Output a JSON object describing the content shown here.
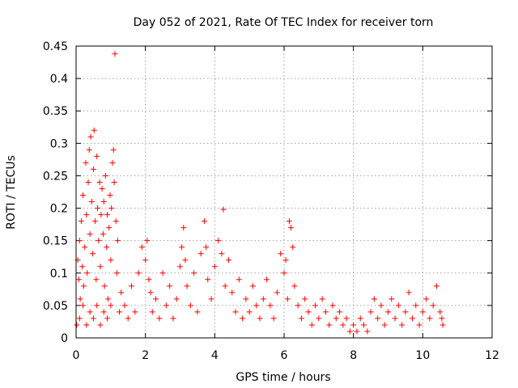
{
  "chart_data": {
    "type": "scatter",
    "title": "Day 052 of 2021, Rate Of TEC Index for receiver torn",
    "xlabel": "GPS time / hours",
    "ylabel": "ROTI / TECUs",
    "xlim": [
      0,
      12
    ],
    "ylim": [
      0,
      0.45
    ],
    "x_ticks": [
      0,
      2,
      4,
      6,
      8,
      10,
      12
    ],
    "y_ticks": [
      0,
      0.05,
      0.1,
      0.15,
      0.2,
      0.25,
      0.3,
      0.35,
      0.4,
      0.45
    ],
    "x_tick_labels": [
      "0",
      "2",
      "4",
      "6",
      "8",
      "10",
      "12"
    ],
    "y_tick_labels": [
      "0",
      "0.05",
      "0.1",
      "0.15",
      "0.2",
      "0.25",
      "0.3",
      "0.35",
      "0.4",
      "0.45"
    ],
    "grid": true,
    "marker": "plus",
    "color": "#ff0000",
    "series": [
      {
        "points": [
          [
            0.02,
            0.02
          ],
          [
            0.05,
            0.12
          ],
          [
            0.08,
            0.09
          ],
          [
            0.1,
            0.15
          ],
          [
            0.12,
            0.06
          ],
          [
            0.15,
            0.18
          ],
          [
            0.18,
            0.11
          ],
          [
            0.2,
            0.22
          ],
          [
            0.22,
            0.08
          ],
          [
            0.25,
            0.14
          ],
          [
            0.28,
            0.27
          ],
          [
            0.3,
            0.19
          ],
          [
            0.32,
            0.1
          ],
          [
            0.35,
            0.24
          ],
          [
            0.38,
            0.29
          ],
          [
            0.4,
            0.16
          ],
          [
            0.42,
            0.31
          ],
          [
            0.45,
            0.21
          ],
          [
            0.48,
            0.13
          ],
          [
            0.5,
            0.26
          ],
          [
            0.52,
            0.32
          ],
          [
            0.55,
            0.18
          ],
          [
            0.58,
            0.09
          ],
          [
            0.6,
            0.28
          ],
          [
            0.62,
            0.2
          ],
          [
            0.65,
            0.15
          ],
          [
            0.68,
            0.24
          ],
          [
            0.7,
            0.11
          ],
          [
            0.72,
            0.19
          ],
          [
            0.75,
            0.23
          ],
          [
            0.78,
            0.16
          ],
          [
            0.8,
            0.21
          ],
          [
            0.82,
            0.08
          ],
          [
            0.85,
            0.25
          ],
          [
            0.88,
            0.14
          ],
          [
            0.9,
            0.19
          ],
          [
            0.92,
            0.06
          ],
          [
            0.95,
            0.17
          ],
          [
            0.98,
            0.22
          ],
          [
            1.0,
            0.12
          ],
          [
            1.02,
            0.2
          ],
          [
            1.05,
            0.27
          ],
          [
            1.08,
            0.29
          ],
          [
            1.1,
            0.24
          ],
          [
            1.12,
            0.438
          ],
          [
            1.15,
            0.18
          ],
          [
            1.18,
            0.1
          ],
          [
            1.2,
            0.15
          ],
          [
            1.25,
            0.04
          ],
          [
            1.3,
            0.07
          ],
          [
            0.1,
            0.03
          ],
          [
            0.2,
            0.05
          ],
          [
            0.3,
            0.02
          ],
          [
            0.4,
            0.04
          ],
          [
            0.5,
            0.03
          ],
          [
            0.6,
            0.05
          ],
          [
            0.7,
            0.02
          ],
          [
            0.8,
            0.04
          ],
          [
            0.9,
            0.03
          ],
          [
            1.0,
            0.05
          ],
          [
            1.4,
            0.05
          ],
          [
            1.5,
            0.03
          ],
          [
            1.6,
            0.08
          ],
          [
            1.7,
            0.04
          ],
          [
            1.8,
            0.1
          ],
          [
            1.9,
            0.14
          ],
          [
            2.0,
            0.12
          ],
          [
            2.05,
            0.15
          ],
          [
            2.1,
            0.09
          ],
          [
            2.15,
            0.07
          ],
          [
            2.2,
            0.04
          ],
          [
            2.3,
            0.06
          ],
          [
            2.4,
            0.03
          ],
          [
            2.5,
            0.1
          ],
          [
            2.6,
            0.05
          ],
          [
            2.7,
            0.08
          ],
          [
            2.8,
            0.03
          ],
          [
            2.9,
            0.06
          ],
          [
            3.0,
            0.11
          ],
          [
            3.05,
            0.14
          ],
          [
            3.1,
            0.17
          ],
          [
            3.15,
            0.12
          ],
          [
            3.2,
            0.08
          ],
          [
            3.3,
            0.05
          ],
          [
            3.4,
            0.1
          ],
          [
            3.5,
            0.04
          ],
          [
            3.6,
            0.13
          ],
          [
            3.7,
            0.18
          ],
          [
            3.75,
            0.14
          ],
          [
            3.8,
            0.09
          ],
          [
            3.9,
            0.06
          ],
          [
            4.0,
            0.11
          ],
          [
            4.1,
            0.15
          ],
          [
            4.2,
            0.13
          ],
          [
            4.25,
            0.198
          ],
          [
            4.3,
            0.08
          ],
          [
            4.4,
            0.12
          ],
          [
            4.5,
            0.07
          ],
          [
            4.6,
            0.04
          ],
          [
            4.7,
            0.09
          ],
          [
            4.8,
            0.03
          ],
          [
            4.9,
            0.06
          ],
          [
            5.0,
            0.04
          ],
          [
            5.1,
            0.08
          ],
          [
            5.2,
            0.05
          ],
          [
            5.3,
            0.03
          ],
          [
            5.4,
            0.06
          ],
          [
            5.5,
            0.09
          ],
          [
            5.6,
            0.05
          ],
          [
            5.7,
            0.03
          ],
          [
            5.8,
            0.07
          ],
          [
            5.9,
            0.13
          ],
          [
            6.0,
            0.1
          ],
          [
            6.05,
            0.12
          ],
          [
            6.1,
            0.06
          ],
          [
            6.15,
            0.18
          ],
          [
            6.2,
            0.17
          ],
          [
            6.25,
            0.14
          ],
          [
            6.3,
            0.08
          ],
          [
            6.4,
            0.05
          ],
          [
            6.5,
            0.03
          ],
          [
            6.6,
            0.06
          ],
          [
            6.7,
            0.04
          ],
          [
            6.8,
            0.02
          ],
          [
            6.9,
            0.05
          ],
          [
            7.0,
            0.03
          ],
          [
            7.1,
            0.06
          ],
          [
            7.2,
            0.04
          ],
          [
            7.3,
            0.02
          ],
          [
            7.4,
            0.05
          ],
          [
            7.5,
            0.03
          ],
          [
            7.6,
            0.04
          ],
          [
            7.7,
            0.02
          ],
          [
            7.8,
            0.03
          ],
          [
            7.9,
            0.01
          ],
          [
            8.0,
            0.02
          ],
          [
            8.1,
            0.01
          ],
          [
            8.2,
            0.03
          ],
          [
            8.3,
            0.02
          ],
          [
            8.4,
            0.01
          ],
          [
            8.5,
            0.04
          ],
          [
            8.6,
            0.06
          ],
          [
            8.7,
            0.03
          ],
          [
            8.8,
            0.05
          ],
          [
            8.9,
            0.02
          ],
          [
            9.0,
            0.04
          ],
          [
            9.1,
            0.06
          ],
          [
            9.2,
            0.03
          ],
          [
            9.3,
            0.05
          ],
          [
            9.4,
            0.02
          ],
          [
            9.5,
            0.04
          ],
          [
            9.6,
            0.07
          ],
          [
            9.7,
            0.03
          ],
          [
            9.8,
            0.05
          ],
          [
            9.9,
            0.02
          ],
          [
            10.0,
            0.04
          ],
          [
            10.1,
            0.06
          ],
          [
            10.2,
            0.03
          ],
          [
            10.3,
            0.05
          ],
          [
            10.4,
            0.08
          ],
          [
            10.5,
            0.04
          ],
          [
            10.55,
            0.03
          ],
          [
            10.58,
            0.02
          ]
        ]
      }
    ]
  }
}
